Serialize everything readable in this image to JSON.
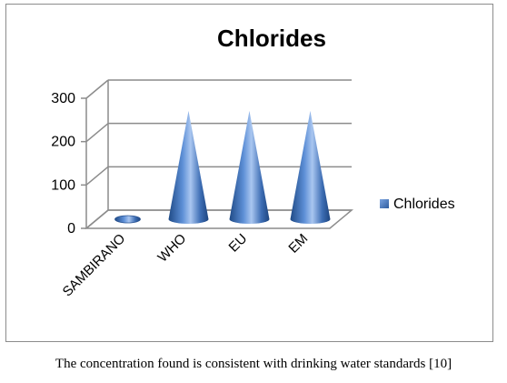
{
  "chart_data": {
    "type": "bar",
    "title": "Chlorides",
    "categories": [
      "SAMBIRANO",
      "WHO",
      "EU",
      "EM"
    ],
    "series": [
      {
        "name": "Chlorides",
        "values": [
          5,
          250,
          250,
          250
        ],
        "color": "#4f81bd"
      }
    ],
    "ylim": [
      0,
      300
    ],
    "yticks": [
      0,
      100,
      200,
      300
    ],
    "grid": true,
    "legend": "right",
    "xlabel": "",
    "ylabel": ""
  },
  "caption": "The concentration found is consistent with drinking water standards [10]"
}
